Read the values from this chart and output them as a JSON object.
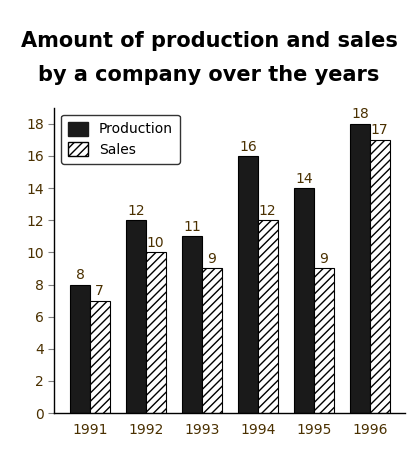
{
  "title_line1": "Amount of production and sales",
  "title_line2": "by a company over the years",
  "years": [
    "1991",
    "1992",
    "1993",
    "1994",
    "1995",
    "1996"
  ],
  "production": [
    8,
    12,
    11,
    16,
    14,
    18
  ],
  "sales": [
    7,
    10,
    9,
    12,
    9,
    17
  ],
  "production_color": "#1a1a1a",
  "sales_hatch": "////",
  "ylim": [
    0,
    19
  ],
  "yticks": [
    0,
    2,
    4,
    6,
    8,
    10,
    12,
    14,
    16,
    18
  ],
  "bar_width": 0.35,
  "title_fontsize": 15,
  "tick_fontsize": 10,
  "label_fontsize": 10,
  "annot_fontsize": 10,
  "annot_color": "#4a3000",
  "axis_label_color": "#4a3000",
  "tick_color": "#4a3000"
}
